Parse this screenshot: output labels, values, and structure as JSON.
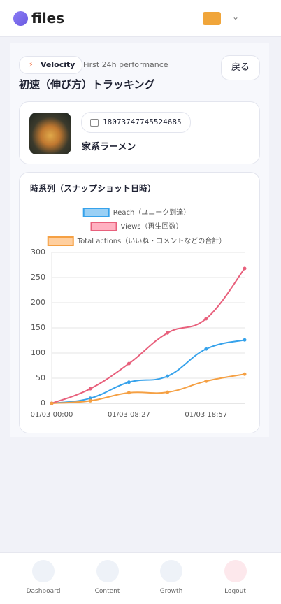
{
  "header": {
    "logo": "files"
  },
  "page": {
    "badge": "Velocity",
    "subtitle": "First 24h performance",
    "back": "戻る",
    "title": "初速（伸び方）トラッキング"
  },
  "post": {
    "id": "18073747745524685",
    "name": "家系ラーメン"
  },
  "chart_data": {
    "type": "line",
    "title": "時系列（スナップショット日時）",
    "categories": [
      "01/03 00:00",
      null,
      "01/03 08:27",
      null,
      "01/03 18:57",
      null
    ],
    "series": [
      {
        "name": "Reach（ユニーク到達）",
        "color": "#36a2eb",
        "fill": "#9ad0f5",
        "values": [
          0,
          10,
          42,
          54,
          108,
          126
        ]
      },
      {
        "name": "Views（再生回数）",
        "color": "#e8607c",
        "fill": "#ffb1c1",
        "values": [
          0,
          29,
          79,
          140,
          168,
          268
        ]
      },
      {
        "name": "Total actions（いいね・コメントなどの合計）",
        "color": "#f5a043",
        "fill": "#ffcf9f",
        "values": [
          0,
          5,
          21,
          22,
          44,
          58
        ]
      }
    ],
    "ylim": [
      0,
      300
    ],
    "yticks": [
      0,
      50,
      100,
      150,
      200,
      250,
      300
    ],
    "grid": true
  },
  "nav": [
    {
      "label": "Dashboard"
    },
    {
      "label": "Content"
    },
    {
      "label": "Growth"
    },
    {
      "label": "Logout"
    }
  ]
}
